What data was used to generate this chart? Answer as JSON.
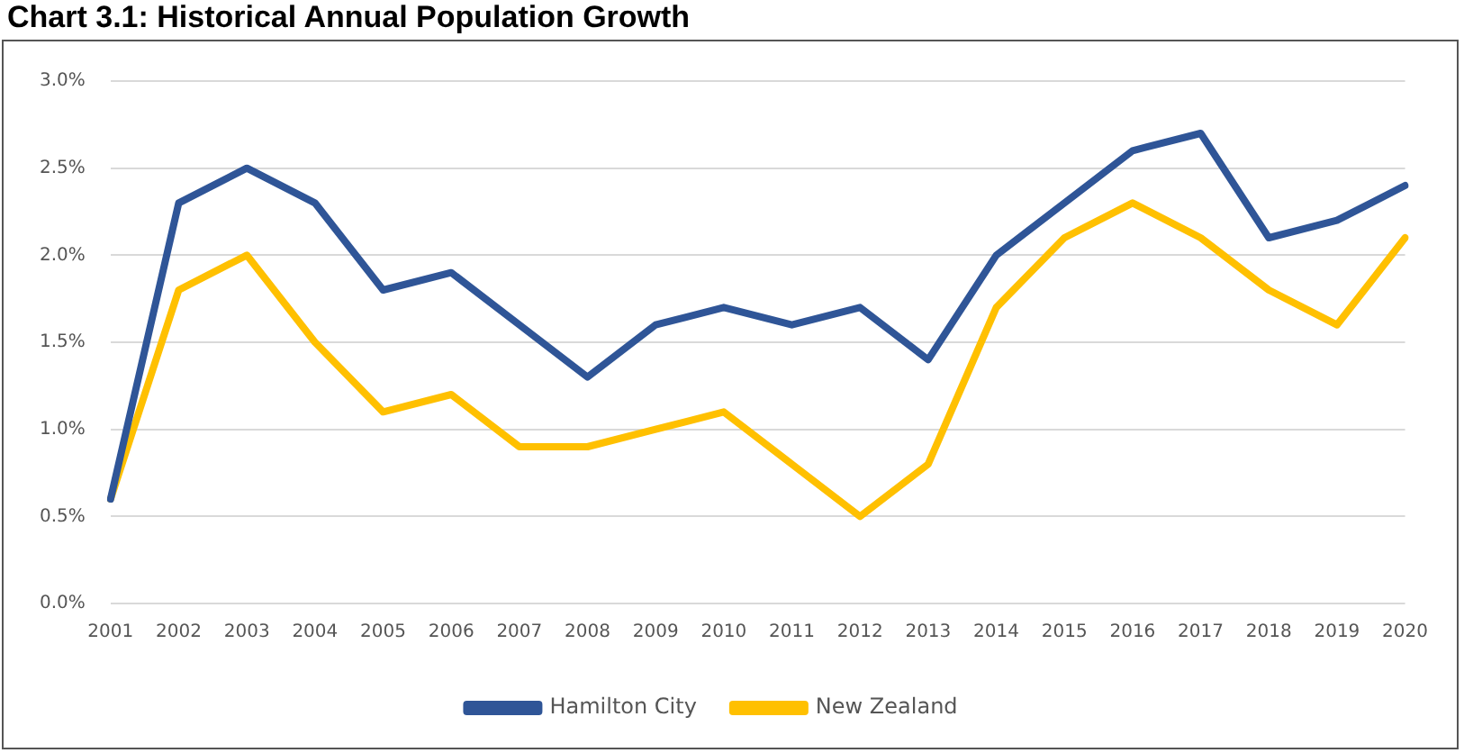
{
  "chart_data": {
    "type": "line",
    "title": "Chart 3.1: Historical Annual Population Growth",
    "categories": [
      "2001",
      "2002",
      "2003",
      "2004",
      "2005",
      "2006",
      "2007",
      "2008",
      "2009",
      "2010",
      "2011",
      "2012",
      "2013",
      "2014",
      "2015",
      "2016",
      "2017",
      "2018",
      "2019",
      "2020"
    ],
    "series": [
      {
        "name": "Hamilton City",
        "color": "#2f5597",
        "values": [
          0.6,
          2.3,
          2.5,
          2.3,
          1.8,
          1.9,
          1.6,
          1.3,
          1.6,
          1.7,
          1.6,
          1.7,
          1.4,
          2.0,
          2.3,
          2.6,
          2.7,
          2.1,
          2.2,
          2.4
        ]
      },
      {
        "name": "New Zealand",
        "color": "#ffc000",
        "values": [
          0.6,
          1.8,
          2.0,
          1.5,
          1.1,
          1.2,
          0.9,
          0.9,
          1.0,
          1.1,
          0.8,
          0.5,
          0.8,
          1.7,
          2.1,
          2.3,
          2.1,
          1.8,
          1.6,
          2.1
        ]
      }
    ],
    "ylim": [
      0,
      3
    ],
    "yticks": [
      {
        "value": 0,
        "label": "0.0%"
      },
      {
        "value": 0.5,
        "label": "0.5%"
      },
      {
        "value": 1,
        "label": "1.0%"
      },
      {
        "value": 1.5,
        "label": "1.5%"
      },
      {
        "value": 2,
        "label": "2.0%"
      },
      {
        "value": 2.5,
        "label": "2.5%"
      },
      {
        "value": 3,
        "label": "3.0%"
      }
    ],
    "grid": "y",
    "legend": "bottom",
    "marker": "none",
    "line_style": "solid"
  }
}
